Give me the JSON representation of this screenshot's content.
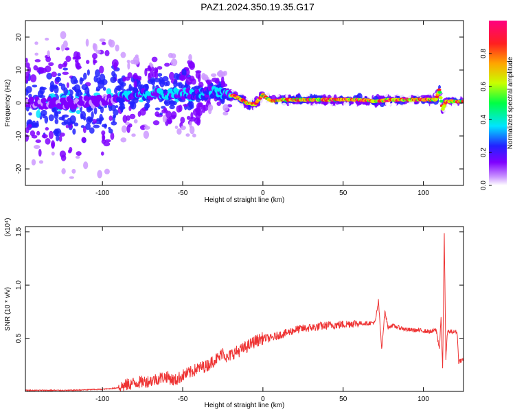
{
  "title": "PAZ1.2024.350.19.35.G17",
  "chart_data": [
    {
      "type": "heatmap",
      "name": "spectrogram",
      "xlabel": "Height of straight line (km)",
      "ylabel": "Frequency (Hz)",
      "xlim": [
        -148,
        125
      ],
      "ylim": [
        -25,
        25
      ],
      "x_ticks": [
        -100,
        -50,
        0,
        50,
        100
      ],
      "y_ticks": [
        -20,
        -10,
        0,
        10,
        20
      ],
      "colorbar": {
        "label": "Normalized spectral amplitude",
        "range": [
          0.0,
          1.0
        ],
        "ticks": [
          "0.0",
          "0.2",
          "0.4",
          "0.6",
          "0.8"
        ],
        "colors": [
          "#ffffff",
          "#cc99ff",
          "#7f00ff",
          "#2222ff",
          "#00e5ff",
          "#00ff44",
          "#c8ff00",
          "#ffa500",
          "#ff2020",
          "#ff0080"
        ]
      },
      "ridge": {
        "description_free_values": true,
        "x": [
          -148,
          -120,
          -100,
          -80,
          -60,
          -40,
          -30,
          -25,
          -20,
          -15,
          -10,
          -5,
          0,
          5,
          10,
          50,
          60,
          70,
          80,
          100,
          108,
          110,
          112,
          114,
          125
        ],
        "y": [
          0,
          0,
          0.5,
          2.5,
          3,
          2.5,
          3.5,
          3,
          2.5,
          1.5,
          0,
          -0.5,
          2.5,
          0.5,
          1,
          1,
          1,
          0.5,
          1,
          1,
          1,
          4,
          -2,
          0.5,
          0.5
        ]
      }
    },
    {
      "type": "line",
      "name": "snr",
      "xlabel": "Height of straight line (km)",
      "ylabel": "SNR (10 * v/v)",
      "y_multiplier": "(x10⁴)",
      "xlim": [
        -148,
        125
      ],
      "ylim": [
        0,
        1.55
      ],
      "x_ticks": [
        -100,
        -50,
        0,
        50,
        100
      ],
      "y_ticks": [
        0.5,
        1.0,
        1.5
      ],
      "y_tick_labels": [
        "0.5",
        "1.0",
        "1.5"
      ],
      "color": "#ee3333",
      "series": [
        {
          "x": [
            -148,
            -120,
            -100,
            -92,
            -85,
            -80,
            -75,
            -70,
            -65,
            -60,
            -55,
            -50,
            -45,
            -40,
            -35,
            -30,
            -27,
            -25,
            -22,
            -20,
            -15,
            -10,
            -5,
            0,
            5,
            10,
            15,
            20,
            25,
            30,
            40,
            50,
            55,
            60,
            65,
            70,
            72,
            74,
            76,
            78,
            80,
            85,
            90,
            100,
            105,
            108,
            110,
            111,
            112,
            113,
            114,
            115,
            118,
            121,
            122,
            123,
            125
          ],
          "y": [
            0.01,
            0.01,
            0.02,
            0.03,
            0.06,
            0.08,
            0.09,
            0.1,
            0.12,
            0.14,
            0.1,
            0.15,
            0.18,
            0.22,
            0.24,
            0.3,
            0.32,
            0.38,
            0.3,
            0.35,
            0.38,
            0.42,
            0.47,
            0.5,
            0.5,
            0.53,
            0.55,
            0.58,
            0.59,
            0.6,
            0.62,
            0.63,
            0.64,
            0.64,
            0.64,
            0.65,
            0.85,
            0.4,
            0.75,
            0.6,
            0.62,
            0.6,
            0.58,
            0.57,
            0.56,
            0.58,
            0.4,
            0.7,
            0.2,
            1.5,
            0.3,
            0.56,
            0.56,
            0.56,
            0.28,
            0.29,
            0.3
          ]
        }
      ]
    }
  ]
}
